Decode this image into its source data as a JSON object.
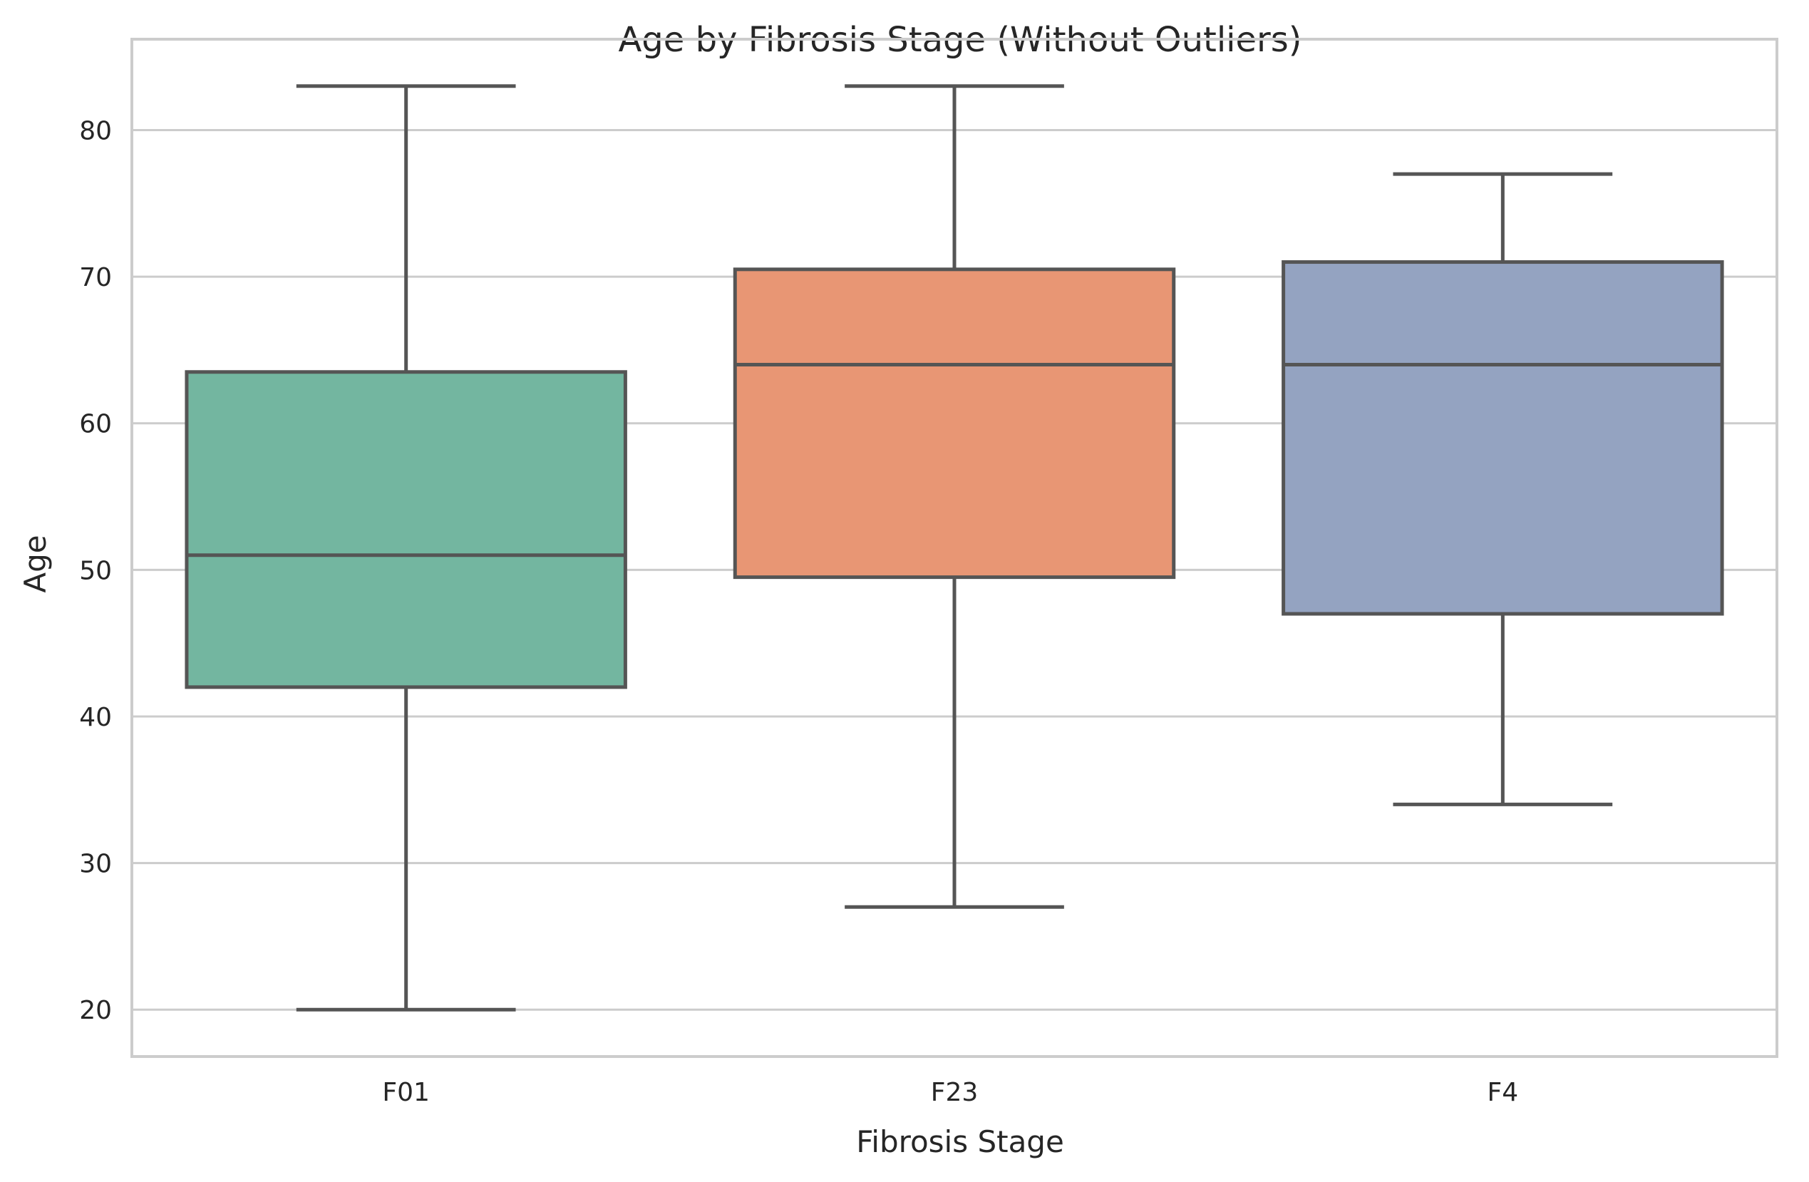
{
  "chart_data": {
    "type": "box",
    "title": "Age by Fibrosis Stage (Without Outliers)",
    "xlabel": "Fibrosis Stage",
    "ylabel": "Age",
    "ylim": [
      16.8,
      86.2
    ],
    "yticks": [
      20,
      30,
      40,
      50,
      60,
      70,
      80
    ],
    "grid": true,
    "categories": [
      "F01",
      "F23",
      "F4"
    ],
    "boxes": [
      {
        "category": "F01",
        "whisker_low": 20,
        "q1": 42,
        "median": 51,
        "q3": 63.5,
        "whisker_high": 83,
        "color": "#73b6a0"
      },
      {
        "category": "F23",
        "whisker_low": 27,
        "q1": 49.5,
        "median": 64,
        "q3": 70.5,
        "whisker_high": 83,
        "color": "#e89674"
      },
      {
        "category": "F4",
        "whisker_low": 34,
        "q1": 47,
        "median": 64,
        "q3": 71,
        "whisker_high": 77,
        "color": "#94a3c1"
      }
    ]
  }
}
